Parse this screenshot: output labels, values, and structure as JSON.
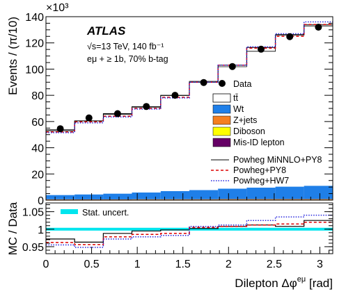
{
  "chart_data": [
    {
      "panel": "main",
      "type": "stacked-histogram",
      "ylabel": "Events / (π/10)",
      "y_scale_label": "×10³",
      "ylim": [
        0,
        140000
      ],
      "yticks": [
        "0",
        "20",
        "40",
        "60",
        "80",
        "100",
        "120",
        "140"
      ],
      "xlim": [
        0,
        3.1416
      ],
      "bin_edges": [
        0,
        0.314,
        0.628,
        0.942,
        1.257,
        1.571,
        1.885,
        2.199,
        2.513,
        2.827,
        3.1416
      ],
      "annotations": {
        "atlas": "ATLAS",
        "lumi": "√s=13 TeV, 140 fb⁻¹",
        "selection": "eμ + ≥ 1b, 70% b-tag"
      },
      "stack": [
        {
          "name": "tt̄",
          "color": "#ffffff",
          "values": [
            49800,
            56000,
            60400,
            65500,
            72900,
            83000,
            93000,
            104000,
            116000,
            123000
          ]
        },
        {
          "name": "Wt",
          "color": "#1f7fe8",
          "values": [
            3300,
            3800,
            4400,
            5200,
            6200,
            7000,
            8000,
            8800,
            9500,
            10200
          ]
        },
        {
          "name": "Z+jets",
          "color": "#f57f20",
          "values": [
            300,
            300,
            300,
            350,
            350,
            350,
            400,
            400,
            400,
            400
          ]
        },
        {
          "name": "Diboson",
          "color": "#ffff00",
          "values": [
            100,
            100,
            100,
            100,
            100,
            100,
            100,
            100,
            100,
            100
          ]
        },
        {
          "name": "Mis-ID lepton",
          "color": "#660066",
          "values": [
            200,
            200,
            200,
            250,
            250,
            250,
            300,
            300,
            300,
            300
          ]
        }
      ],
      "data": {
        "name": "Data",
        "values": [
          54500,
          62800,
          66000,
          71500,
          80000,
          89800,
          102000,
          115200,
          124800,
          132000
        ]
      },
      "models": [
        {
          "name": "Powheg MiNNLO+PY8",
          "color": "#000000",
          "dash": "solid",
          "values": [
            53000,
            60500,
            66000,
            71000,
            80000,
            90000,
            103000,
            116500,
            126000,
            133000
          ]
        },
        {
          "name": "Powheg+PY8",
          "color": "#dd0000",
          "dash": "dashed",
          "values": [
            52000,
            59800,
            64000,
            70000,
            78500,
            90000,
            103000,
            116000,
            125000,
            134000
          ]
        },
        {
          "name": "Powheg+HW7",
          "color": "#2222dd",
          "dash": "dotted",
          "values": [
            51500,
            59000,
            63500,
            69500,
            78000,
            90000,
            103000,
            117000,
            127000,
            136000
          ]
        }
      ]
    },
    {
      "panel": "ratio",
      "type": "ratio",
      "ylabel": "MC / Data",
      "xlabel": "Dilepton Δφ^{eμ} [rad]",
      "ylim": [
        0.93,
        1.075
      ],
      "yticks": [
        "0.95",
        "1",
        "1.05"
      ],
      "xticks": [
        "0",
        "0.5",
        "1",
        "1.5",
        "2",
        "2.5",
        "3"
      ],
      "band": {
        "name": "Stat. uncert.",
        "color": "#00e5ee",
        "halfwidth": 0.004
      },
      "models": [
        {
          "name": "Powheg MiNNLO+PY8",
          "values": [
            0.972,
            0.963,
            0.988,
            0.995,
            0.998,
            1.002,
            1.008,
            1.012,
            1.008,
            1.025
          ]
        },
        {
          "name": "Powheg+PY8",
          "values": [
            0.962,
            0.956,
            0.978,
            0.985,
            0.988,
            1.005,
            1.008,
            1.012,
            1.015,
            1.02
          ]
        },
        {
          "name": "Powheg+HW7",
          "values": [
            0.955,
            0.948,
            0.972,
            0.978,
            0.982,
            1.008,
            1.012,
            1.025,
            1.035,
            1.04
          ]
        }
      ]
    }
  ]
}
